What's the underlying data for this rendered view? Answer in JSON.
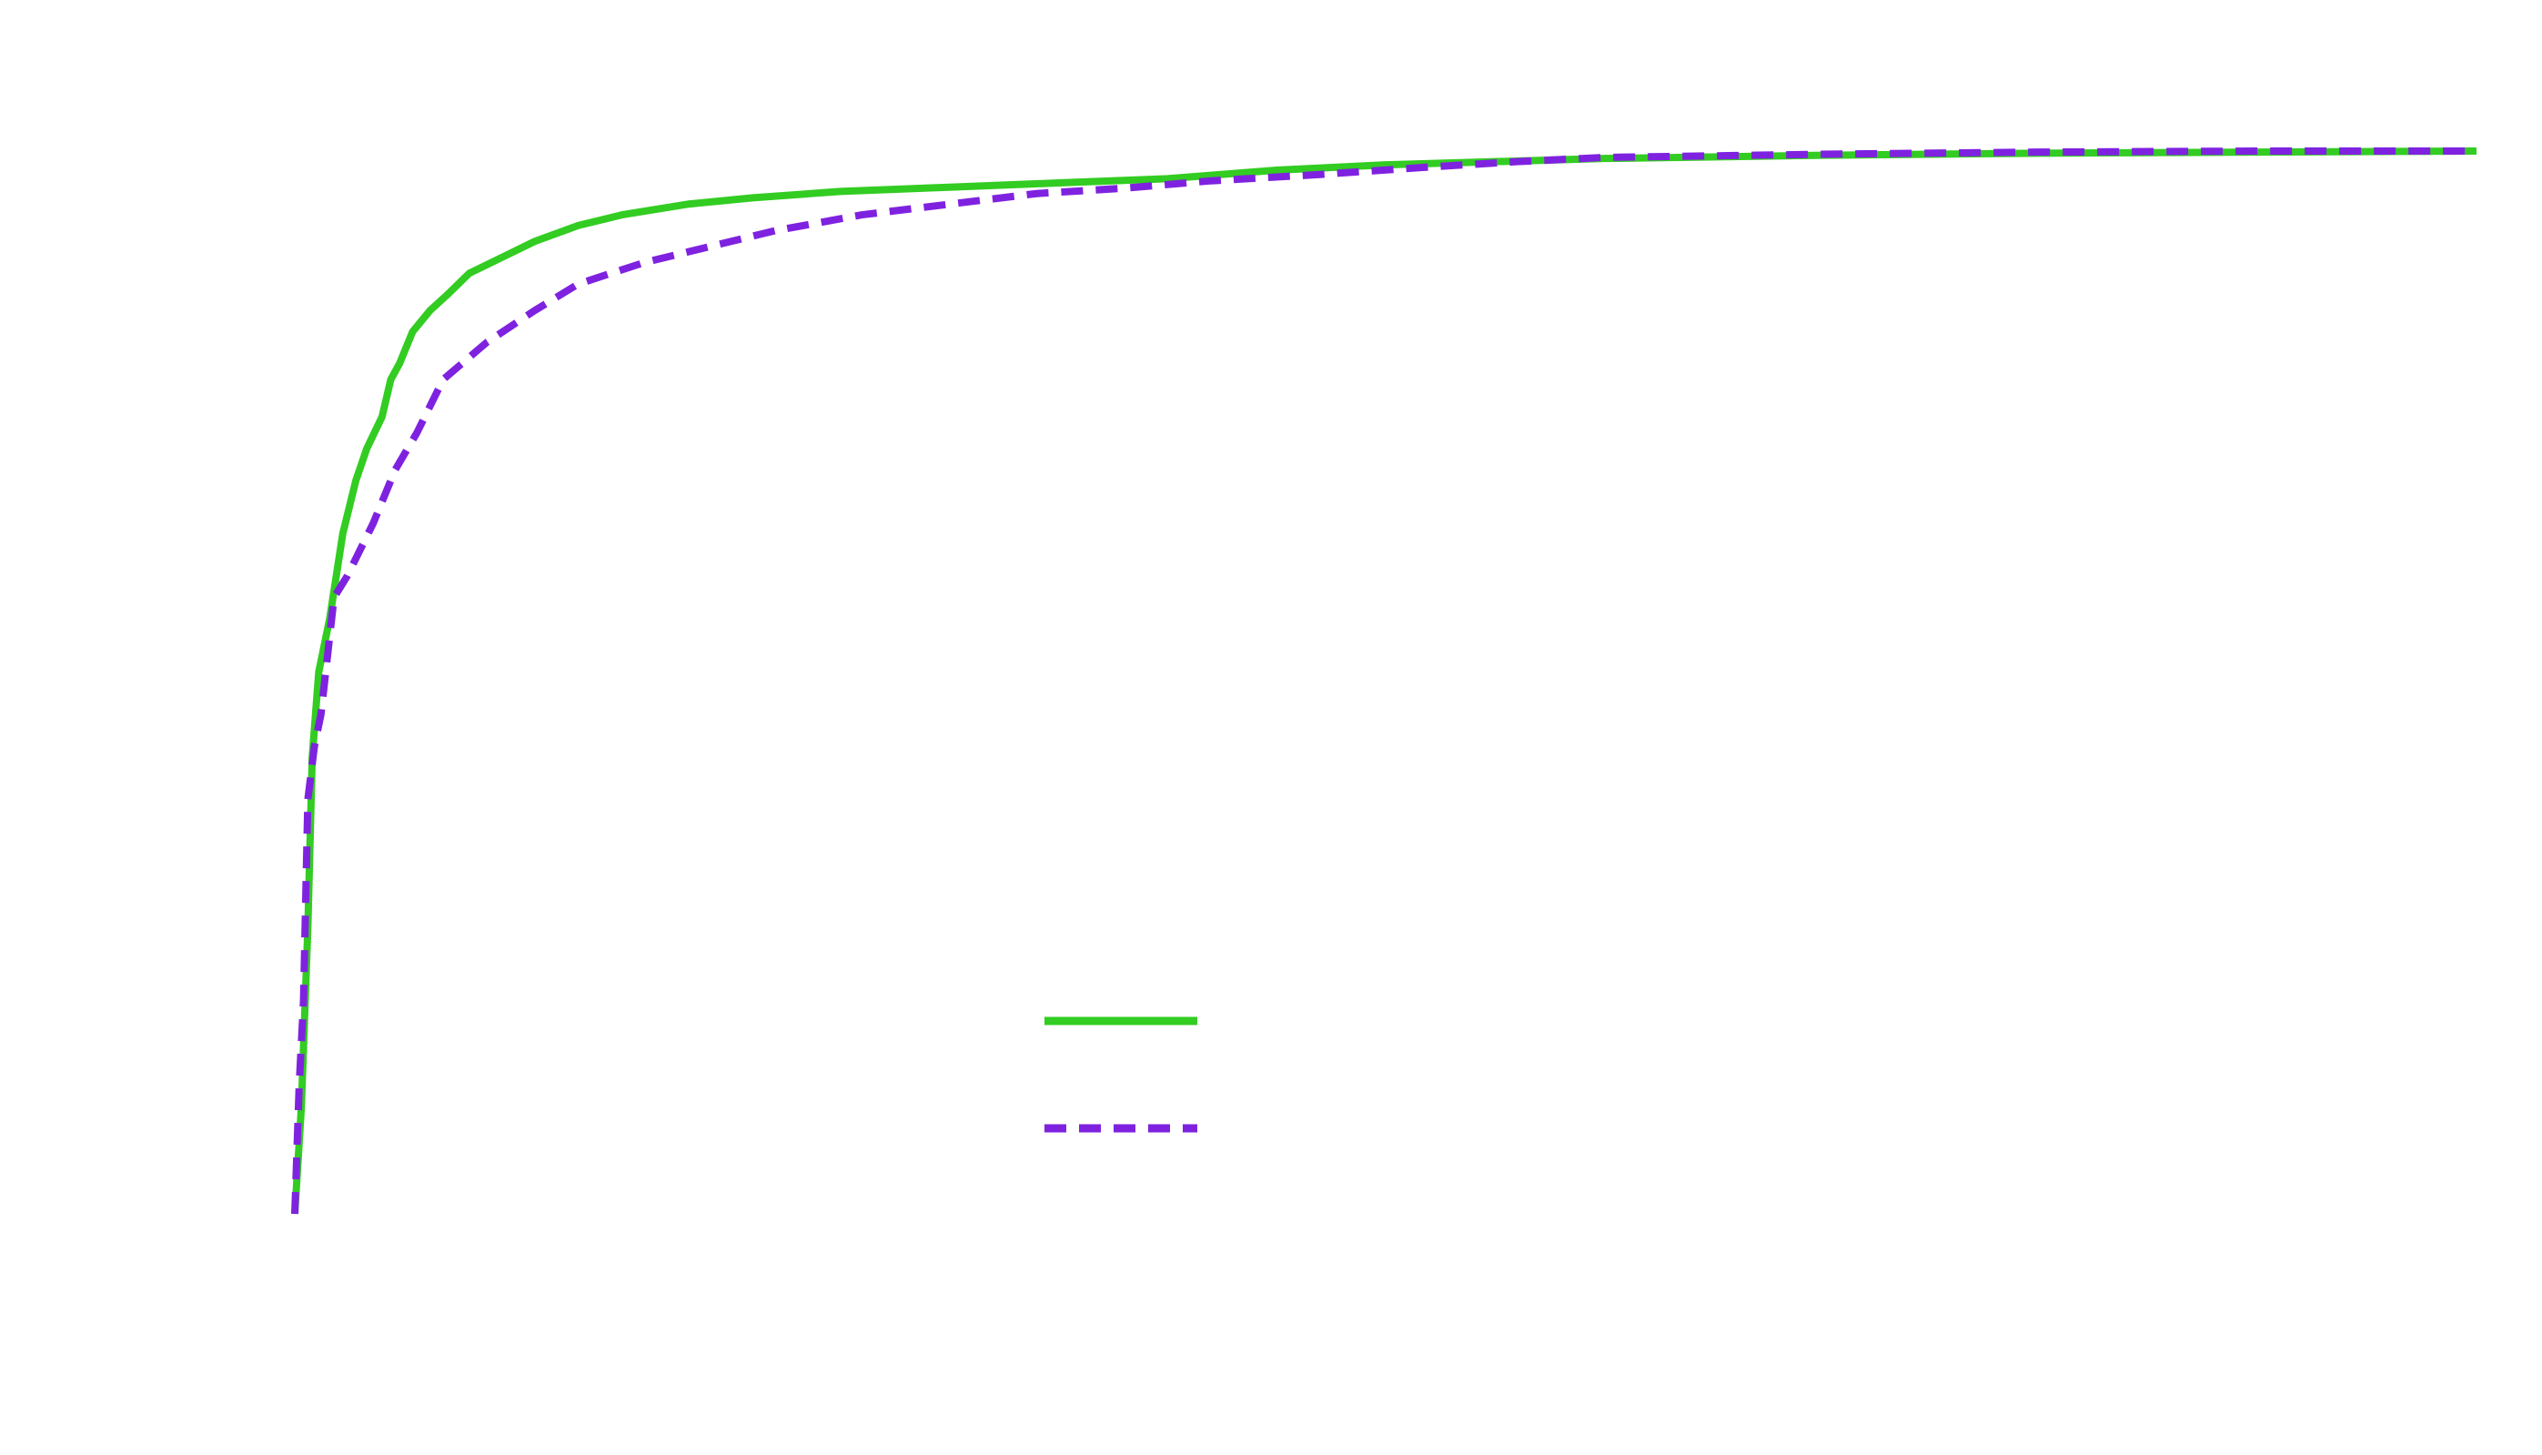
{
  "chart_data": {
    "type": "line",
    "title": "",
    "xlabel": "",
    "ylabel": "",
    "xlim": [
      0,
      1
    ],
    "ylim": [
      0,
      1
    ],
    "grid": false,
    "legend_position": "bottom-center",
    "series": [
      {
        "style": "solid",
        "color": "#33cc22",
        "points": [
          [
            0.0,
            0.0
          ],
          [
            0.003,
            0.1
          ],
          [
            0.006,
            0.27
          ],
          [
            0.008,
            0.43
          ],
          [
            0.011,
            0.51
          ],
          [
            0.016,
            0.56
          ],
          [
            0.022,
            0.64
          ],
          [
            0.028,
            0.69
          ],
          [
            0.033,
            0.72
          ],
          [
            0.04,
            0.75
          ],
          [
            0.044,
            0.785
          ],
          [
            0.048,
            0.8
          ],
          [
            0.054,
            0.83
          ],
          [
            0.062,
            0.85
          ],
          [
            0.07,
            0.865
          ],
          [
            0.08,
            0.885
          ],
          [
            0.095,
            0.9
          ],
          [
            0.11,
            0.915
          ],
          [
            0.13,
            0.93
          ],
          [
            0.15,
            0.94
          ],
          [
            0.18,
            0.95
          ],
          [
            0.21,
            0.956
          ],
          [
            0.25,
            0.962
          ],
          [
            0.3,
            0.966
          ],
          [
            0.35,
            0.97
          ],
          [
            0.4,
            0.974
          ],
          [
            0.45,
            0.982
          ],
          [
            0.5,
            0.987
          ],
          [
            0.55,
            0.99
          ],
          [
            0.6,
            0.993
          ],
          [
            0.7,
            0.996
          ],
          [
            0.8,
            0.998
          ],
          [
            0.9,
            0.999
          ],
          [
            1.0,
            1.0
          ]
        ]
      },
      {
        "style": "dashed",
        "color": "#7f22e0",
        "points": [
          [
            0.0,
            0.0
          ],
          [
            0.002,
            0.12
          ],
          [
            0.004,
            0.2
          ],
          [
            0.006,
            0.39
          ],
          [
            0.009,
            0.44
          ],
          [
            0.012,
            0.47
          ],
          [
            0.018,
            0.58
          ],
          [
            0.024,
            0.6
          ],
          [
            0.036,
            0.65
          ],
          [
            0.046,
            0.7
          ],
          [
            0.056,
            0.735
          ],
          [
            0.068,
            0.785
          ],
          [
            0.088,
            0.82
          ],
          [
            0.11,
            0.85
          ],
          [
            0.13,
            0.875
          ],
          [
            0.16,
            0.895
          ],
          [
            0.19,
            0.91
          ],
          [
            0.22,
            0.925
          ],
          [
            0.26,
            0.94
          ],
          [
            0.3,
            0.95
          ],
          [
            0.34,
            0.96
          ],
          [
            0.38,
            0.965
          ],
          [
            0.42,
            0.972
          ],
          [
            0.47,
            0.978
          ],
          [
            0.52,
            0.985
          ],
          [
            0.56,
            0.99
          ],
          [
            0.6,
            0.994
          ],
          [
            0.7,
            0.997
          ],
          [
            0.8,
            0.999
          ],
          [
            0.9,
            1.0
          ],
          [
            1.0,
            1.0
          ]
        ]
      }
    ]
  }
}
